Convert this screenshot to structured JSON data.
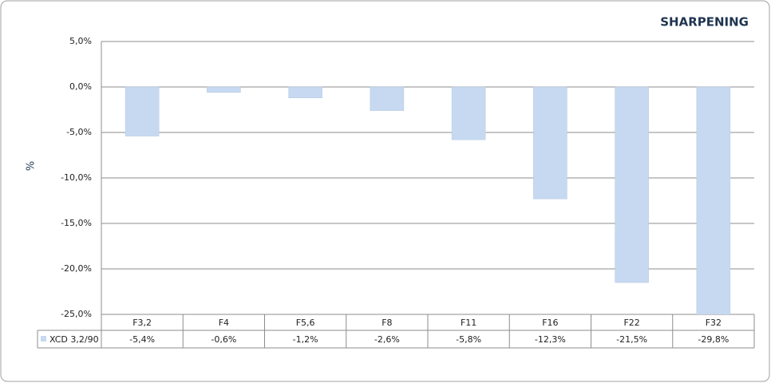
{
  "chart_data": {
    "type": "bar",
    "title": "SHARPENING",
    "y_label": "%",
    "categories": [
      "F3,2",
      "F4",
      "F5,6",
      "F8",
      "F11",
      "F16",
      "F22",
      "F32"
    ],
    "series": [
      {
        "name": "XCD 3,2/90",
        "color": "#c6d9f1",
        "values": [
          -5.4,
          -0.6,
          -1.2,
          -2.6,
          -5.8,
          -12.3,
          -21.5,
          -29.8
        ],
        "value_labels": [
          "-5,4%",
          "-0,6%",
          "-1,2%",
          "-2,6%",
          "-5,8%",
          "-12,3%",
          "-21,5%",
          "-29,8%"
        ]
      }
    ],
    "ylim": [
      -25,
      5
    ],
    "yticks": [
      {
        "value": -25,
        "label": "-25,0%"
      },
      {
        "value": -20,
        "label": "-20,0%"
      },
      {
        "value": -15,
        "label": "-15,0%"
      },
      {
        "value": -10,
        "label": "-10,0%"
      },
      {
        "value": -5,
        "label": "-5,0%"
      },
      {
        "value": 0,
        "label": "0,0%"
      },
      {
        "value": 5,
        "label": "5,0%"
      }
    ],
    "grid": true
  }
}
